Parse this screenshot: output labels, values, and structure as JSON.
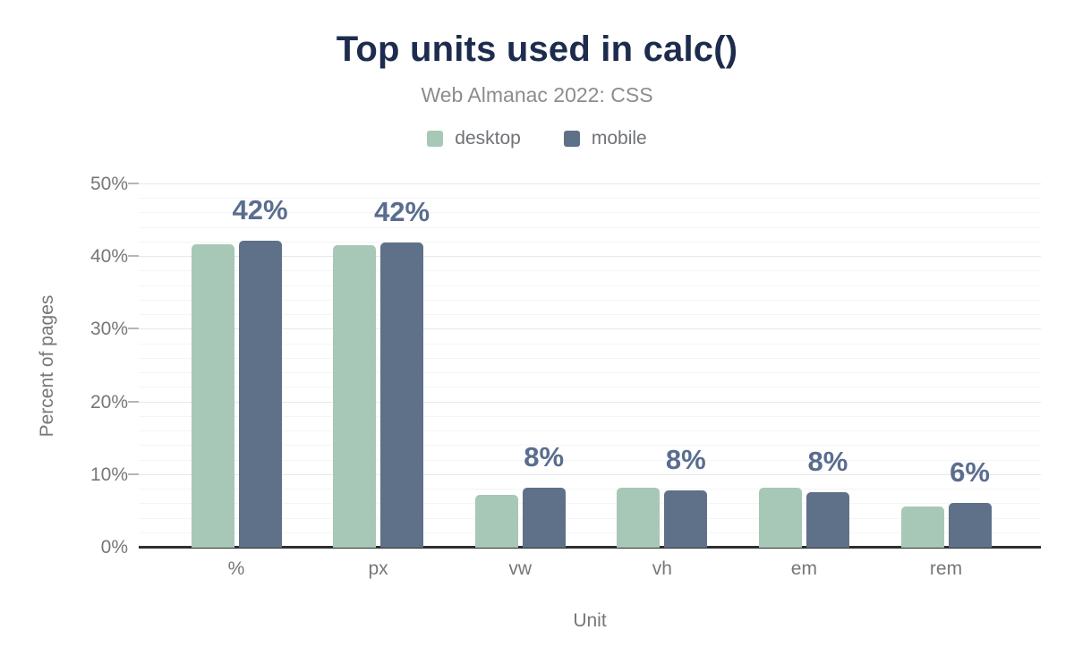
{
  "header": {
    "title": "Top units used in calc()",
    "subtitle": "Web Almanac 2022: CSS"
  },
  "colors": {
    "title_text": "#1d2c4e",
    "subtitle_text": "#8a8d90",
    "axis_text": "#75777a",
    "axis_line": "#2e2e2e",
    "bar_label_text": "#5a6d8f",
    "desktop": "#a7c8b6",
    "mobile": "#5f7089"
  },
  "chart_data": {
    "type": "bar",
    "title": "Top units used in calc()",
    "subtitle": "Web Almanac 2022: CSS",
    "categories": [
      "%",
      "px",
      "vw",
      "vh",
      "em",
      "rem"
    ],
    "series": [
      {
        "name": "desktop",
        "color": "#a7c8b6",
        "values": [
          41.8,
          41.6,
          7.3,
          8.2,
          8.2,
          5.7
        ]
      },
      {
        "name": "mobile",
        "color": "#5f7089",
        "values": [
          42.2,
          42.0,
          8.3,
          7.9,
          7.6,
          6.1
        ]
      }
    ],
    "bar_labels": {
      "labeled_series": "mobile",
      "values": [
        "42%",
        "42%",
        "8%",
        "8%",
        "8%",
        "6%"
      ]
    },
    "xlabel": "Unit",
    "ylabel": "Percent of pages",
    "ylim": [
      0,
      50
    ],
    "yticks": [
      {
        "value": 0,
        "label": "0%"
      },
      {
        "value": 10,
        "label": "10%"
      },
      {
        "value": 20,
        "label": "20%"
      },
      {
        "value": 30,
        "label": "30%"
      },
      {
        "value": 40,
        "label": "40%"
      },
      {
        "value": 50,
        "label": "50%"
      }
    ],
    "grid": "horizontal; major every 10%, faint minor every 2%",
    "legend_position": "top center"
  }
}
